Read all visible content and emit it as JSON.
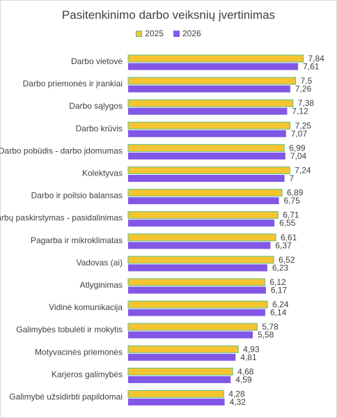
{
  "chart_data": {
    "type": "bar",
    "orientation": "horizontal",
    "title": "Pasitenkinimo darbo veiksnių įvertinimas",
    "legend_position": "top",
    "grid": false,
    "xlim": [
      0,
      8
    ],
    "categories": [
      "Darbo vietovė",
      "Darbo priemonės ir įrankiai",
      "Darbo sąlygos",
      "Darbo krūvis",
      "Darbo pobūdis - darbo įdomumas",
      "Kolektyvas",
      "Darbo ir poilsio balansas",
      "Darbų paskirstymas - pasidalinimas",
      "Pagarba ir mikroklimatas",
      "Vadovas (ai)",
      "Atlyginimas",
      "Vidinė komunikacija",
      "Galimybės tobulėti ir mokytis",
      "Motyvacinės priemonės",
      "Karjeros galimybės",
      "Galimybė užsidirbti papildomai"
    ],
    "series": [
      {
        "name": "2025",
        "color": "#f5c531",
        "border": "#5cbf8a",
        "values": [
          7.84,
          7.5,
          7.38,
          7.25,
          6.99,
          7.24,
          6.89,
          6.71,
          6.61,
          6.52,
          6.12,
          6.24,
          5.78,
          4.93,
          4.68,
          4.28
        ],
        "labels": [
          "7,84",
          "7,5",
          "7,38",
          "7,25",
          "6,99",
          "7,24",
          "6,89",
          "6,71",
          "6,61",
          "6,52",
          "6,12",
          "6,24",
          "5,78",
          "4,93",
          "4,68",
          "4,28"
        ]
      },
      {
        "name": "2026",
        "color": "#8257e6",
        "border": "#8257e6",
        "values": [
          7.61,
          7.26,
          7.12,
          7.07,
          7.04,
          7,
          6.75,
          6.55,
          6.37,
          6.23,
          6.17,
          6.14,
          5.58,
          4.81,
          4.59,
          4.32
        ],
        "labels": [
          "7,61",
          "7,26",
          "7,12",
          "7,07",
          "7,04",
          "7",
          "6,75",
          "6,55",
          "6,37",
          "6,23",
          "6,17",
          "6,14",
          "5,58",
          "4,81",
          "4,59",
          "4,32"
        ]
      }
    ]
  }
}
